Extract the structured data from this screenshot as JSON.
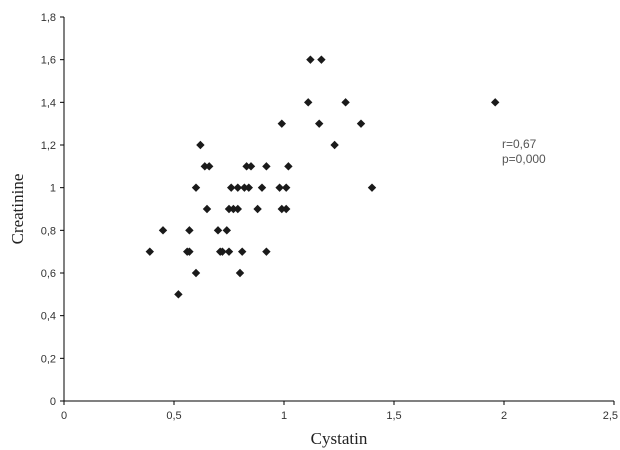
{
  "chart_data": {
    "type": "scatter",
    "xlabel": "Cystatin",
    "ylabel": "Creatinine",
    "xlim": [
      0,
      2.5
    ],
    "ylim": [
      0,
      1.8
    ],
    "x_ticks": [
      "0",
      "0,5",
      "1",
      "1,5",
      "2",
      "2,5"
    ],
    "y_ticks": [
      "0",
      "0,2",
      "0,4",
      "0,6",
      "0,8",
      "1",
      "1,2",
      "1,4",
      "1,6",
      "1,8"
    ],
    "annotations": [
      "r=0,67",
      "p=0,000"
    ],
    "marker_color": "#1a1a1a",
    "marker": "diamond",
    "grid": false,
    "points": [
      {
        "x": 0.39,
        "y": 0.7
      },
      {
        "x": 0.45,
        "y": 0.8
      },
      {
        "x": 0.52,
        "y": 0.5
      },
      {
        "x": 0.56,
        "y": 0.7
      },
      {
        "x": 0.57,
        "y": 0.7
      },
      {
        "x": 0.57,
        "y": 0.8
      },
      {
        "x": 0.6,
        "y": 0.6
      },
      {
        "x": 0.6,
        "y": 1.0
      },
      {
        "x": 0.62,
        "y": 1.2
      },
      {
        "x": 0.64,
        "y": 1.1
      },
      {
        "x": 0.65,
        "y": 0.9
      },
      {
        "x": 0.66,
        "y": 1.1
      },
      {
        "x": 0.7,
        "y": 0.8
      },
      {
        "x": 0.71,
        "y": 0.7
      },
      {
        "x": 0.72,
        "y": 0.7
      },
      {
        "x": 0.74,
        "y": 0.8
      },
      {
        "x": 0.75,
        "y": 0.7
      },
      {
        "x": 0.75,
        "y": 0.9
      },
      {
        "x": 0.76,
        "y": 1.0
      },
      {
        "x": 0.77,
        "y": 0.9
      },
      {
        "x": 0.79,
        "y": 0.9
      },
      {
        "x": 0.79,
        "y": 1.0
      },
      {
        "x": 0.8,
        "y": 0.6
      },
      {
        "x": 0.81,
        "y": 0.7
      },
      {
        "x": 0.82,
        "y": 1.0
      },
      {
        "x": 0.83,
        "y": 1.1
      },
      {
        "x": 0.84,
        "y": 1.0
      },
      {
        "x": 0.85,
        "y": 1.1
      },
      {
        "x": 0.88,
        "y": 0.9
      },
      {
        "x": 0.9,
        "y": 1.0
      },
      {
        "x": 0.92,
        "y": 0.7
      },
      {
        "x": 0.92,
        "y": 1.1
      },
      {
        "x": 0.98,
        "y": 1.0
      },
      {
        "x": 0.99,
        "y": 0.9
      },
      {
        "x": 0.99,
        "y": 1.3
      },
      {
        "x": 1.01,
        "y": 0.9
      },
      {
        "x": 1.01,
        "y": 1.0
      },
      {
        "x": 1.02,
        "y": 1.1
      },
      {
        "x": 1.11,
        "y": 1.4
      },
      {
        "x": 1.12,
        "y": 1.6
      },
      {
        "x": 1.16,
        "y": 1.3
      },
      {
        "x": 1.17,
        "y": 1.6
      },
      {
        "x": 1.23,
        "y": 1.2
      },
      {
        "x": 1.28,
        "y": 1.4
      },
      {
        "x": 1.35,
        "y": 1.3
      },
      {
        "x": 1.4,
        "y": 1.0
      },
      {
        "x": 1.96,
        "y": 1.4
      }
    ]
  }
}
